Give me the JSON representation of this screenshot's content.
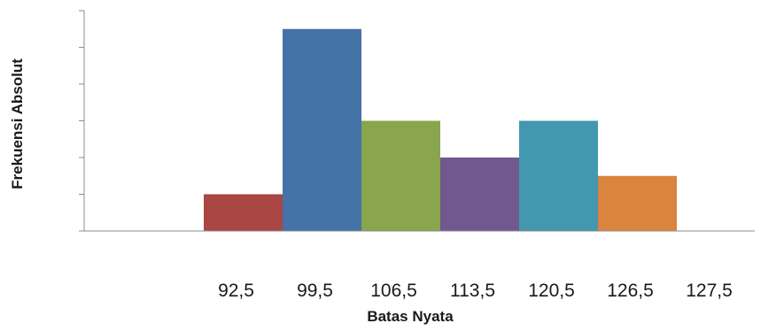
{
  "chart_data": {
    "type": "bar",
    "categories": [
      "92,5",
      "99,5",
      "106,5",
      "113,5",
      "120,5",
      "126,5",
      "127,5"
    ],
    "values": [
      1,
      5.5,
      3,
      2,
      3,
      1.5,
      0
    ],
    "colors": [
      "#aa4643",
      "#4572a7",
      "#89a54e",
      "#71588f",
      "#4198af",
      "#db843d",
      "#93a9cf"
    ],
    "xlabel": "Batas Nyata",
    "ylabel": "Frekuensi Absolut",
    "ylim": [
      0,
      6
    ],
    "y_ticks": [
      0,
      1,
      2,
      3,
      4,
      5,
      6
    ],
    "y_tick_labels_visible": false,
    "bar_gap": 0,
    "grid": false,
    "legend": "none"
  }
}
